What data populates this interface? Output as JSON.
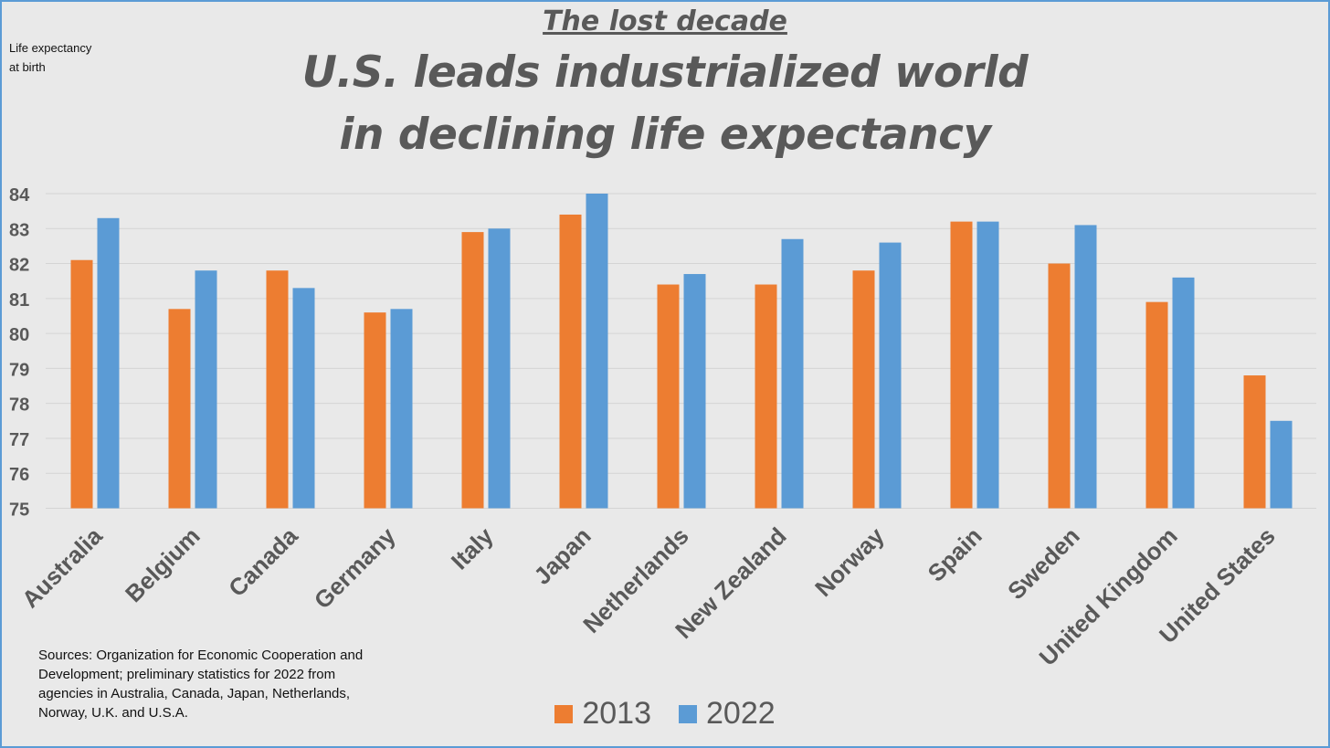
{
  "kicker": "The lost decade",
  "title_lines": [
    "U.S. leads industrialized world",
    "in declining life expectancy"
  ],
  "sources": "Sources: Organization for Economic Cooperation and Development; preliminary statistics for 2022 from agencies in  Australia, Canada, Japan, Netherlands, Norway, U.K. and U.S.A.",
  "chart_data": {
    "type": "bar",
    "title": "U.S. leads industrialized world in declining life expectancy",
    "ylabel": "Life expectancy at birth",
    "xlabel": "",
    "ylim": [
      75,
      84
    ],
    "yticks": [
      75,
      76,
      77,
      78,
      79,
      80,
      81,
      82,
      83,
      84
    ],
    "grid": true,
    "legend_position": "bottom",
    "categories": [
      "Australia",
      "Belgium",
      "Canada",
      "Germany",
      "Italy",
      "Japan",
      "Netherlands",
      "New Zealand",
      "Norway",
      "Spain",
      "Sweden",
      "United Kingdom",
      "United States"
    ],
    "series": [
      {
        "name": "2013",
        "color": "#ed7d31",
        "values": [
          82.1,
          80.7,
          81.8,
          80.6,
          82.9,
          83.4,
          81.4,
          81.4,
          81.8,
          83.2,
          82.0,
          80.9,
          78.8
        ]
      },
      {
        "name": "2022",
        "color": "#5b9bd5",
        "values": [
          83.3,
          81.8,
          81.3,
          80.7,
          83.0,
          84.0,
          81.7,
          82.7,
          82.6,
          83.2,
          83.1,
          81.6,
          77.5
        ]
      }
    ]
  }
}
